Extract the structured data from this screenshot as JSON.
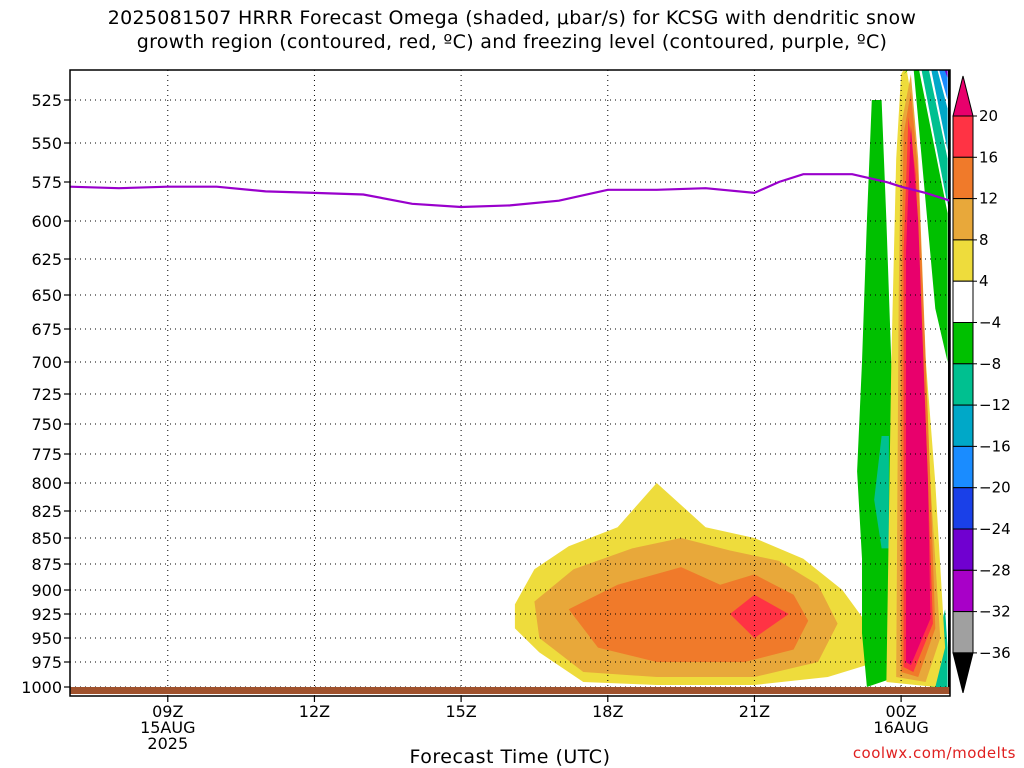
{
  "title": "2025081507 HRRR Forecast Omega (shaded, μbar/s) for KCSG with dendritic snow\ngrowth region (contoured, red, ºC) and freezing level (contoured, purple, ºC)",
  "credit": "coolwx.com/modelts",
  "chart_data": {
    "type": "time-height contour",
    "xlabel": "Forecast Time (UTC)",
    "ylabel": "",
    "y_ticks": [
      525,
      550,
      575,
      600,
      625,
      650,
      675,
      700,
      725,
      750,
      775,
      800,
      825,
      850,
      875,
      900,
      925,
      950,
      975,
      1000
    ],
    "x_ticks": [
      {
        "hours": 9,
        "line1": "09Z",
        "line2": "15AUG",
        "line3": "2025"
      },
      {
        "hours": 12,
        "line1": "12Z",
        "line2": "",
        "line3": ""
      },
      {
        "hours": 15,
        "line1": "15Z",
        "line2": "",
        "line3": ""
      },
      {
        "hours": 18,
        "line1": "18Z",
        "line2": "",
        "line3": ""
      },
      {
        "hours": 21,
        "line1": "21Z",
        "line2": "",
        "line3": ""
      },
      {
        "hours": 24,
        "line1": "00Z",
        "line2": "16AUG",
        "line3": ""
      }
    ],
    "x_range_hours": [
      7,
      25
    ],
    "y_range_mb": [
      1005,
      505
    ],
    "freezing_level_color": "#9900cc",
    "freezing_level": [
      {
        "h": 7,
        "p": 578
      },
      {
        "h": 8,
        "p": 579
      },
      {
        "h": 9,
        "p": 578
      },
      {
        "h": 10,
        "p": 578
      },
      {
        "h": 11,
        "p": 581
      },
      {
        "h": 12,
        "p": 582
      },
      {
        "h": 13,
        "p": 583
      },
      {
        "h": 14,
        "p": 589
      },
      {
        "h": 15,
        "p": 591
      },
      {
        "h": 16,
        "p": 590
      },
      {
        "h": 17,
        "p": 587
      },
      {
        "h": 18,
        "p": 580
      },
      {
        "h": 19,
        "p": 580
      },
      {
        "h": 20,
        "p": 579
      },
      {
        "h": 21,
        "p": 582
      },
      {
        "h": 21.5,
        "p": 575
      },
      {
        "h": 22,
        "p": 570
      },
      {
        "h": 23,
        "p": 570
      },
      {
        "h": 23.7,
        "p": 575
      },
      {
        "h": 24,
        "p": 578
      },
      {
        "h": 24.5,
        "p": 582
      },
      {
        "h": 25,
        "p": 587
      }
    ],
    "colorbar": {
      "labels": [
        "20",
        "16",
        "12",
        "8",
        "4",
        "−4",
        "−8",
        "−12",
        "−16",
        "−20",
        "−24",
        "−28",
        "−32",
        "−36"
      ],
      "colors": [
        "#e8006c",
        "#ff3344",
        "#f07a2a",
        "#e8a83a",
        "#eedc3c",
        "#ffffff",
        "#00c000",
        "#00c090",
        "#00a8c8",
        "#1a8cff",
        "#1a40e8",
        "#7000d0",
        "#a800c8",
        "#a0a0a0"
      ],
      "top_color": "#e8006c",
      "bottom_color": "#000000"
    },
    "omega_regions": [
      {
        "color": "#eedc3c",
        "pts": [
          [
            16.1,
            915
          ],
          [
            16.5,
            880
          ],
          [
            17.2,
            858
          ],
          [
            18.2,
            840
          ],
          [
            19.0,
            800
          ],
          [
            20.0,
            840
          ],
          [
            21.0,
            850
          ],
          [
            22.0,
            870
          ],
          [
            22.8,
            900
          ],
          [
            23.3,
            935
          ],
          [
            23.5,
            975
          ],
          [
            22.5,
            990
          ],
          [
            21.0,
            998
          ],
          [
            19.0,
            998
          ],
          [
            17.5,
            995
          ],
          [
            16.6,
            965
          ],
          [
            16.1,
            940
          ]
        ]
      },
      {
        "color": "#e8a83a",
        "pts": [
          [
            16.5,
            912
          ],
          [
            17.3,
            880
          ],
          [
            18.5,
            860
          ],
          [
            19.5,
            850
          ],
          [
            20.5,
            862
          ],
          [
            21.5,
            872
          ],
          [
            22.3,
            895
          ],
          [
            22.7,
            935
          ],
          [
            22.3,
            975
          ],
          [
            21.0,
            990
          ],
          [
            19.0,
            990
          ],
          [
            17.5,
            985
          ],
          [
            16.6,
            950
          ]
        ]
      },
      {
        "color": "#f07a2a",
        "pts": [
          [
            17.2,
            920
          ],
          [
            18.2,
            895
          ],
          [
            19.5,
            878
          ],
          [
            20.3,
            895
          ],
          [
            21.0,
            885
          ],
          [
            21.8,
            905
          ],
          [
            22.1,
            932
          ],
          [
            21.8,
            962
          ],
          [
            20.8,
            975
          ],
          [
            19.0,
            975
          ],
          [
            17.8,
            960
          ]
        ]
      },
      {
        "color": "#ff3344",
        "pts": [
          [
            20.5,
            925
          ],
          [
            21.0,
            905
          ],
          [
            21.7,
            925
          ],
          [
            21.0,
            950
          ]
        ]
      },
      {
        "color": "#00c000",
        "pts": [
          [
            23.3,
            1000
          ],
          [
            23.2,
            945
          ],
          [
            23.2,
            870
          ],
          [
            23.1,
            790
          ],
          [
            23.2,
            700
          ],
          [
            23.3,
            600
          ],
          [
            23.4,
            525
          ],
          [
            23.6,
            525
          ],
          [
            23.7,
            600
          ],
          [
            23.8,
            700
          ],
          [
            23.9,
            800
          ],
          [
            23.9,
            900
          ],
          [
            23.9,
            990
          ]
        ]
      },
      {
        "color": "#00c090",
        "pts": [
          [
            23.45,
            815
          ],
          [
            23.6,
            760
          ],
          [
            23.75,
            760
          ],
          [
            23.75,
            860
          ],
          [
            23.6,
            860
          ]
        ]
      },
      {
        "color": "#00c090",
        "pts": [
          [
            24.6,
            1000
          ],
          [
            24.7,
            960
          ],
          [
            24.9,
            920
          ],
          [
            24.95,
            960
          ],
          [
            24.95,
            1000
          ]
        ]
      },
      {
        "color": "#eedc3c",
        "pts": [
          [
            23.7,
            995
          ],
          [
            23.8,
            700
          ],
          [
            23.9,
            560
          ],
          [
            24.0,
            510
          ],
          [
            24.1,
            505
          ],
          [
            24.25,
            530
          ],
          [
            24.4,
            650
          ],
          [
            24.7,
            800
          ],
          [
            24.9,
            960
          ],
          [
            24.7,
            1000
          ]
        ]
      },
      {
        "color": "#e8a83a",
        "pts": [
          [
            23.9,
            990
          ],
          [
            23.95,
            650
          ],
          [
            24.0,
            540
          ],
          [
            24.2,
            510
          ],
          [
            24.35,
            560
          ],
          [
            24.6,
            800
          ],
          [
            24.8,
            950
          ],
          [
            24.5,
            995
          ]
        ]
      },
      {
        "color": "#f07a2a",
        "pts": [
          [
            24.0,
            985
          ],
          [
            24.0,
            650
          ],
          [
            24.05,
            545
          ],
          [
            24.2,
            520
          ],
          [
            24.35,
            570
          ],
          [
            24.6,
            800
          ],
          [
            24.7,
            940
          ],
          [
            24.35,
            990
          ]
        ]
      },
      {
        "color": "#ff3344",
        "pts": [
          [
            24.05,
            980
          ],
          [
            24.05,
            620
          ],
          [
            24.15,
            535
          ],
          [
            24.3,
            570
          ],
          [
            24.55,
            800
          ],
          [
            24.65,
            935
          ],
          [
            24.25,
            985
          ]
        ]
      },
      {
        "color": "#e8006c",
        "pts": [
          [
            24.1,
            975
          ],
          [
            24.1,
            620
          ],
          [
            24.2,
            540
          ],
          [
            24.35,
            600
          ],
          [
            24.55,
            800
          ],
          [
            24.6,
            930
          ],
          [
            24.2,
            978
          ]
        ]
      },
      {
        "color": "#00c000",
        "pts": [
          [
            24.05,
            510
          ],
          [
            24.25,
            505
          ],
          [
            24.7,
            660
          ],
          [
            24.95,
            700
          ],
          [
            24.95,
            595
          ],
          [
            24.35,
            505
          ],
          [
            24.2,
            505
          ]
        ]
      },
      {
        "color": "#00c090",
        "pts": [
          [
            24.4,
            505
          ],
          [
            24.95,
            590
          ],
          [
            24.95,
            560
          ],
          [
            24.55,
            505
          ]
        ]
      },
      {
        "color": "#00a8c8",
        "pts": [
          [
            24.6,
            505
          ],
          [
            24.95,
            555
          ],
          [
            24.95,
            530
          ],
          [
            24.72,
            505
          ]
        ]
      },
      {
        "color": "#1a8cff",
        "pts": [
          [
            24.75,
            505
          ],
          [
            24.95,
            525
          ],
          [
            24.95,
            510
          ],
          [
            24.83,
            505
          ]
        ]
      },
      {
        "color": "#7000d0",
        "pts": [
          [
            24.85,
            505
          ],
          [
            24.95,
            512
          ],
          [
            24.95,
            505
          ]
        ]
      },
      {
        "color": "#000000",
        "pts": [
          [
            24.96,
            505
          ],
          [
            25,
            505
          ],
          [
            25,
            1005
          ],
          [
            24.96,
            1005
          ]
        ]
      }
    ],
    "surface_band_color": "#a0522d"
  }
}
